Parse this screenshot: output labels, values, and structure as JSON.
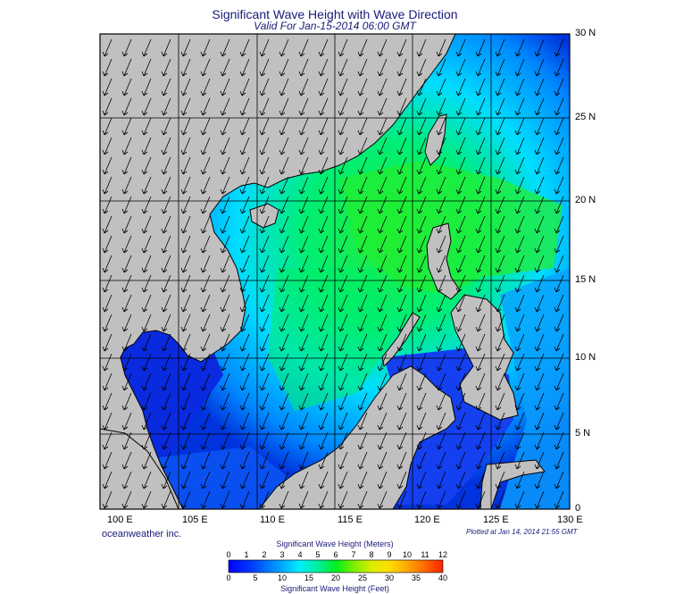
{
  "title": "Significant Wave Height with Wave Direction",
  "subtitle": "Valid For Jan-15-2014 06:00 GMT",
  "credit": "oceanweather inc.",
  "plotted": "Plotted at Jan 14, 2014 21:55 GMT",
  "lat_labels": [
    "30 N",
    "25 N",
    "20 N",
    "15 N",
    "10 N",
    "5 N",
    "0"
  ],
  "lon_labels": [
    "100 E",
    "105 E",
    "110 E",
    "115 E",
    "120 E",
    "125 E",
    "130 E"
  ],
  "colorbar": {
    "title": "Significant Wave Height (Meters)",
    "subtitle": "Significant Wave Height (Feet)",
    "meters_ticks": [
      "0",
      "1",
      "2",
      "3",
      "4",
      "5",
      "6",
      "7",
      "8",
      "9",
      "10",
      "11",
      "12"
    ],
    "feet_ticks": [
      "0",
      "5",
      "10",
      "15",
      "20",
      "25",
      "30",
      "35",
      "40"
    ]
  },
  "colors": {
    "land": "#c0c0c0",
    "sea_low": "#0000ff",
    "sea_mid": "#00e5ff",
    "sea_high": "#00ee44",
    "title_text": "#1a1a7a"
  }
}
